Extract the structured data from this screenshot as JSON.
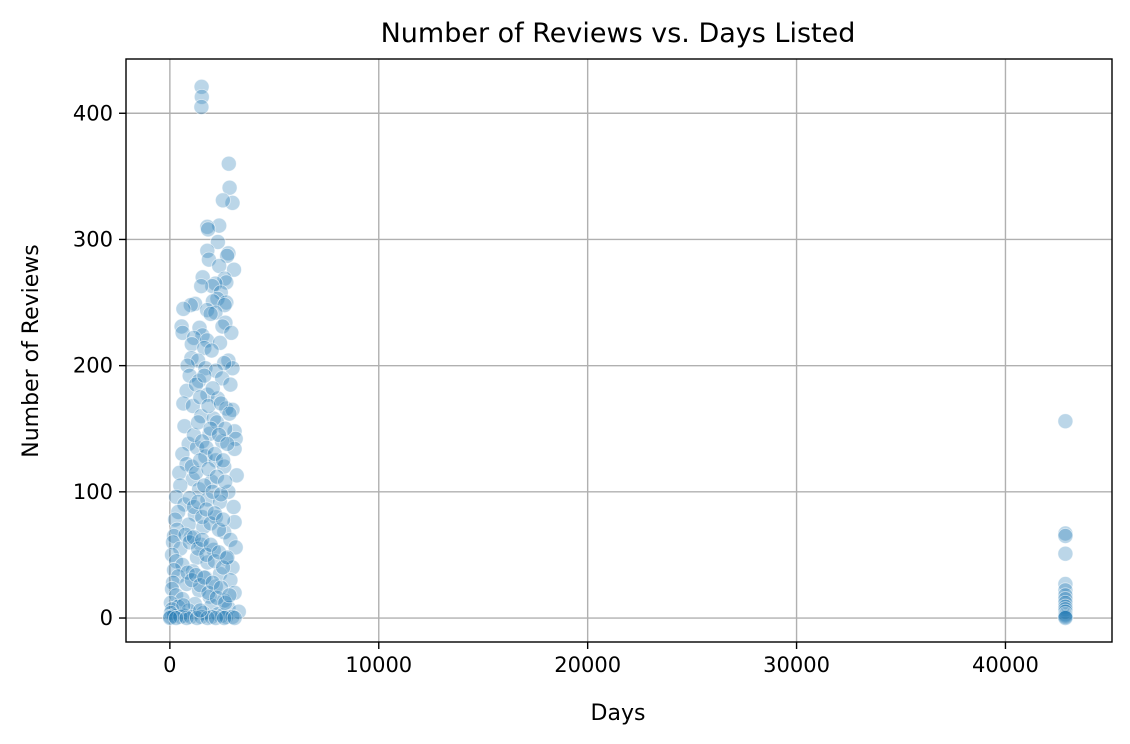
{
  "chart_data": {
    "type": "scatter",
    "title": "Number of Reviews vs. Days Listed",
    "xlabel": "Days",
    "ylabel": "Number of Reviews",
    "xlim": [
      -2100,
      45100
    ],
    "ylim": [
      -19,
      443
    ],
    "grid": true,
    "color": "#1f77b4",
    "x_ticks": [
      0,
      10000,
      20000,
      30000,
      40000
    ],
    "x_tick_labels": [
      "0",
      "10000",
      "20000",
      "30000",
      "40000"
    ],
    "y_ticks": [
      0,
      100,
      200,
      300,
      400
    ],
    "y_tick_labels": [
      "0",
      "100",
      "200",
      "300",
      "400"
    ],
    "series": [
      {
        "points": [
          [
            1520,
            421
          ],
          [
            1530,
            413
          ],
          [
            1510,
            405
          ],
          [
            2820,
            360
          ],
          [
            2860,
            341
          ],
          [
            3000,
            329
          ],
          [
            2540,
            331
          ],
          [
            2360,
            311
          ],
          [
            1790,
            310
          ],
          [
            1830,
            308
          ],
          [
            2300,
            298
          ],
          [
            1790,
            291
          ],
          [
            2800,
            289
          ],
          [
            2740,
            287
          ],
          [
            1870,
            284
          ],
          [
            2360,
            279
          ],
          [
            3070,
            276
          ],
          [
            1570,
            270
          ],
          [
            2620,
            269
          ],
          [
            2700,
            266
          ],
          [
            2180,
            265
          ],
          [
            2030,
            263
          ],
          [
            1500,
            263
          ],
          [
            2440,
            258
          ],
          [
            2280,
            253
          ],
          [
            2060,
            251
          ],
          [
            2700,
            250
          ],
          [
            2620,
            248
          ],
          [
            1210,
            249
          ],
          [
            1000,
            248
          ],
          [
            650,
            245
          ],
          [
            1780,
            244
          ],
          [
            2180,
            242
          ],
          [
            1950,
            241
          ],
          [
            2660,
            234
          ],
          [
            2520,
            231
          ],
          [
            560,
            231
          ],
          [
            1420,
            230
          ],
          [
            610,
            226
          ],
          [
            2940,
            226
          ],
          [
            1560,
            224
          ],
          [
            1150,
            222
          ],
          [
            1780,
            220
          ],
          [
            2400,
            218
          ],
          [
            1050,
            217
          ],
          [
            1650,
            214
          ],
          [
            2000,
            212
          ],
          [
            2800,
            204
          ],
          [
            3000,
            198
          ],
          [
            1030,
            206
          ],
          [
            1350,
            204
          ],
          [
            2600,
            202
          ],
          [
            850,
            200
          ],
          [
            1700,
            198
          ],
          [
            2200,
            196
          ],
          [
            950,
            192
          ],
          [
            2500,
            190
          ],
          [
            1400,
            188
          ],
          [
            2900,
            185
          ],
          [
            800,
            180
          ],
          [
            1800,
            177
          ],
          [
            2300,
            174
          ],
          [
            650,
            170
          ],
          [
            1100,
            168
          ],
          [
            2700,
            166
          ],
          [
            3000,
            165
          ],
          [
            1500,
            160
          ],
          [
            2100,
            158
          ],
          [
            700,
            152
          ],
          [
            3100,
            148
          ],
          [
            1900,
            146
          ],
          [
            3150,
            142
          ],
          [
            2500,
            140
          ],
          [
            900,
            138
          ],
          [
            1300,
            135
          ],
          [
            3100,
            134
          ],
          [
            600,
            130
          ],
          [
            1700,
            128
          ],
          [
            2200,
            125
          ],
          [
            800,
            122
          ],
          [
            2600,
            120
          ],
          [
            450,
            115
          ],
          [
            3200,
            113
          ],
          [
            1100,
            110
          ],
          [
            2000,
            108
          ],
          [
            500,
            105
          ],
          [
            1400,
            102
          ],
          [
            2800,
            100
          ],
          [
            300,
            96
          ],
          [
            1800,
            94
          ],
          [
            2400,
            92
          ],
          [
            700,
            90
          ],
          [
            3050,
            88
          ],
          [
            400,
            84
          ],
          [
            1200,
            82
          ],
          [
            2200,
            80
          ],
          [
            250,
            78
          ],
          [
            3100,
            76
          ],
          [
            900,
            74
          ],
          [
            1600,
            72
          ],
          [
            350,
            70
          ],
          [
            2600,
            68
          ],
          [
            200,
            65
          ],
          [
            1000,
            64
          ],
          [
            2900,
            62
          ],
          [
            150,
            60
          ],
          [
            1500,
            58
          ],
          [
            3150,
            56
          ],
          [
            500,
            55
          ],
          [
            2100,
            54
          ],
          [
            100,
            50
          ],
          [
            1300,
            48
          ],
          [
            2700,
            47
          ],
          [
            300,
            45
          ],
          [
            1800,
            44
          ],
          [
            600,
            42
          ],
          [
            3000,
            40
          ],
          [
            200,
            38
          ],
          [
            1100,
            37
          ],
          [
            2400,
            35
          ],
          [
            400,
            33
          ],
          [
            1700,
            32
          ],
          [
            2900,
            30
          ],
          [
            150,
            28
          ],
          [
            800,
            27
          ],
          [
            2200,
            25
          ],
          [
            100,
            23
          ],
          [
            1400,
            22
          ],
          [
            3100,
            20
          ],
          [
            300,
            18
          ],
          [
            1900,
            17
          ],
          [
            600,
            15
          ],
          [
            2600,
            14
          ],
          [
            50,
            12
          ],
          [
            1200,
            11
          ],
          [
            2000,
            10
          ],
          [
            400,
            9
          ],
          [
            2800,
            8
          ],
          [
            100,
            7
          ],
          [
            900,
            6
          ],
          [
            3300,
            5
          ],
          [
            50,
            4
          ],
          [
            1600,
            4
          ],
          [
            2300,
            3
          ],
          [
            200,
            2
          ],
          [
            700,
            2
          ],
          [
            2500,
            2
          ],
          [
            20,
            1
          ],
          [
            500,
            1
          ],
          [
            1000,
            1
          ],
          [
            1500,
            1
          ],
          [
            2000,
            1
          ],
          [
            2700,
            1
          ],
          [
            3000,
            1
          ],
          [
            10,
            0
          ],
          [
            300,
            0
          ],
          [
            800,
            0
          ],
          [
            1300,
            0
          ],
          [
            1800,
            0
          ],
          [
            2200,
            0
          ],
          [
            2600,
            0
          ],
          [
            3100,
            0
          ],
          [
            1250,
            185
          ],
          [
            1450,
            175
          ],
          [
            1650,
            192
          ],
          [
            1850,
            168
          ],
          [
            2050,
            182
          ],
          [
            2250,
            155
          ],
          [
            2450,
            170
          ],
          [
            2650,
            150
          ],
          [
            2850,
            162
          ],
          [
            1150,
            145
          ],
          [
            1350,
            155
          ],
          [
            1550,
            140
          ],
          [
            1750,
            135
          ],
          [
            1950,
            150
          ],
          [
            2150,
            130
          ],
          [
            2350,
            145
          ],
          [
            2550,
            125
          ],
          [
            2750,
            138
          ],
          [
            1050,
            120
          ],
          [
            1250,
            115
          ],
          [
            1450,
            125
          ],
          [
            1650,
            105
          ],
          [
            1850,
            118
          ],
          [
            2050,
            100
          ],
          [
            2250,
            112
          ],
          [
            2450,
            98
          ],
          [
            2650,
            108
          ],
          [
            950,
            95
          ],
          [
            1150,
            88
          ],
          [
            1350,
            92
          ],
          [
            1550,
            80
          ],
          [
            1750,
            86
          ],
          [
            1950,
            75
          ],
          [
            2150,
            83
          ],
          [
            2350,
            70
          ],
          [
            2550,
            78
          ],
          [
            750,
            66
          ],
          [
            950,
            60
          ],
          [
            1150,
            64
          ],
          [
            1350,
            55
          ],
          [
            1550,
            62
          ],
          [
            1750,
            50
          ],
          [
            1950,
            58
          ],
          [
            2150,
            45
          ],
          [
            2350,
            52
          ],
          [
            2550,
            40
          ],
          [
            2750,
            48
          ],
          [
            850,
            36
          ],
          [
            1050,
            30
          ],
          [
            1250,
            34
          ],
          [
            1450,
            26
          ],
          [
            1650,
            32
          ],
          [
            1850,
            20
          ],
          [
            2050,
            28
          ],
          [
            2250,
            16
          ],
          [
            2450,
            24
          ],
          [
            2650,
            12
          ],
          [
            2850,
            18
          ],
          [
            650,
            10
          ],
          [
            1450,
            6
          ],
          [
            42870,
            156
          ],
          [
            42870,
            67
          ],
          [
            42870,
            65
          ],
          [
            42870,
            51
          ],
          [
            42870,
            27
          ],
          [
            42870,
            22
          ],
          [
            42870,
            18
          ],
          [
            42870,
            15
          ],
          [
            42870,
            12
          ],
          [
            42870,
            9
          ],
          [
            42870,
            7
          ],
          [
            42870,
            5
          ],
          [
            42870,
            3
          ],
          [
            42870,
            2
          ],
          [
            42870,
            1
          ],
          [
            42870,
            0
          ]
        ]
      }
    ]
  }
}
